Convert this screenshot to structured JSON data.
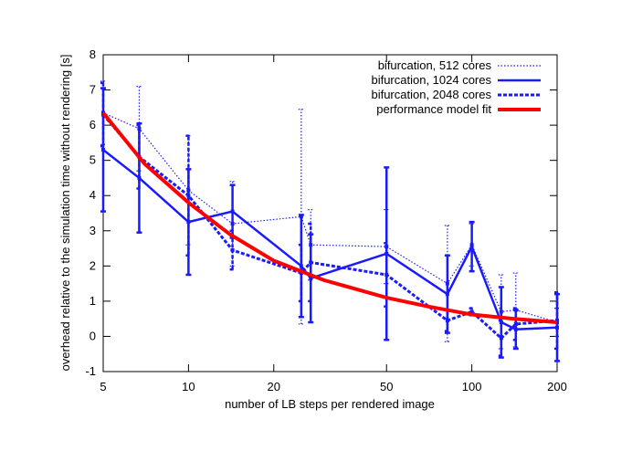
{
  "chart_data": {
    "type": "line",
    "xlabel": "number of LB steps per rendered image",
    "ylabel": "overhead relative to the simulation time without rendering [s]",
    "xscale": "log",
    "xlim": [
      5,
      200
    ],
    "xticks": [
      5,
      10,
      20,
      50,
      100,
      200
    ],
    "ylim": [
      -1,
      8
    ],
    "yticks": [
      -1,
      0,
      1,
      2,
      3,
      4,
      5,
      6,
      7,
      8
    ],
    "legend": "top-right",
    "series": [
      {
        "name": "bifurcation, 512 cores",
        "color": "#1a1aff",
        "style": "dotted",
        "x": [
          5,
          6.7,
          10,
          14.3,
          25,
          27,
          50,
          82,
          100,
          127,
          143,
          200
        ],
        "values": [
          6.35,
          5.9,
          4.15,
          3.2,
          3.4,
          2.6,
          2.55,
          1.5,
          2.6,
          0.7,
          0.75,
          0.4
        ],
        "errors": [
          0.9,
          1.2,
          1.55,
          1.2,
          3.05,
          1.0,
          1.05,
          1.65,
          0.6,
          1.05,
          1.05,
          0.4
        ]
      },
      {
        "name": "bifurcation, 1024 cores",
        "color": "#1a1aff",
        "style": "solid",
        "x": [
          5,
          6.7,
          10,
          14.3,
          25,
          27,
          50,
          82,
          100,
          127,
          143,
          200
        ],
        "values": [
          5.3,
          4.5,
          3.25,
          3.55,
          2.0,
          1.65,
          2.35,
          1.2,
          2.55,
          0.4,
          0.2,
          0.25
        ],
        "errors": [
          1.75,
          1.55,
          1.5,
          0.75,
          1.45,
          1.25,
          2.45,
          1.1,
          0.7,
          1.0,
          0.55,
          0.95
        ]
      },
      {
        "name": "bifurcation, 2048 cores",
        "color": "#1a1aff",
        "style": "dashed",
        "x": [
          5,
          6.7,
          10,
          14.3,
          25,
          27,
          50,
          82,
          100,
          127,
          143,
          200
        ],
        "values": [
          6.3,
          5.1,
          4.0,
          2.45,
          1.8,
          2.1,
          1.75,
          0.45,
          0.7,
          -0.05,
          0.35,
          0.45
        ],
        "errors": [
          0.9,
          0.9,
          1.7,
          0.55,
          0.8,
          1.1,
          0.9,
          0.3,
          0.1,
          0.5,
          0.45,
          0.8
        ]
      },
      {
        "name": "performance model fit",
        "color": "#ff0000",
        "style": "thick",
        "x": [
          5,
          7,
          10,
          14,
          20,
          30,
          50,
          70,
          100,
          140,
          200
        ],
        "values": [
          6.35,
          4.9,
          3.8,
          2.9,
          2.15,
          1.6,
          1.1,
          0.85,
          0.62,
          0.5,
          0.4
        ]
      }
    ]
  }
}
